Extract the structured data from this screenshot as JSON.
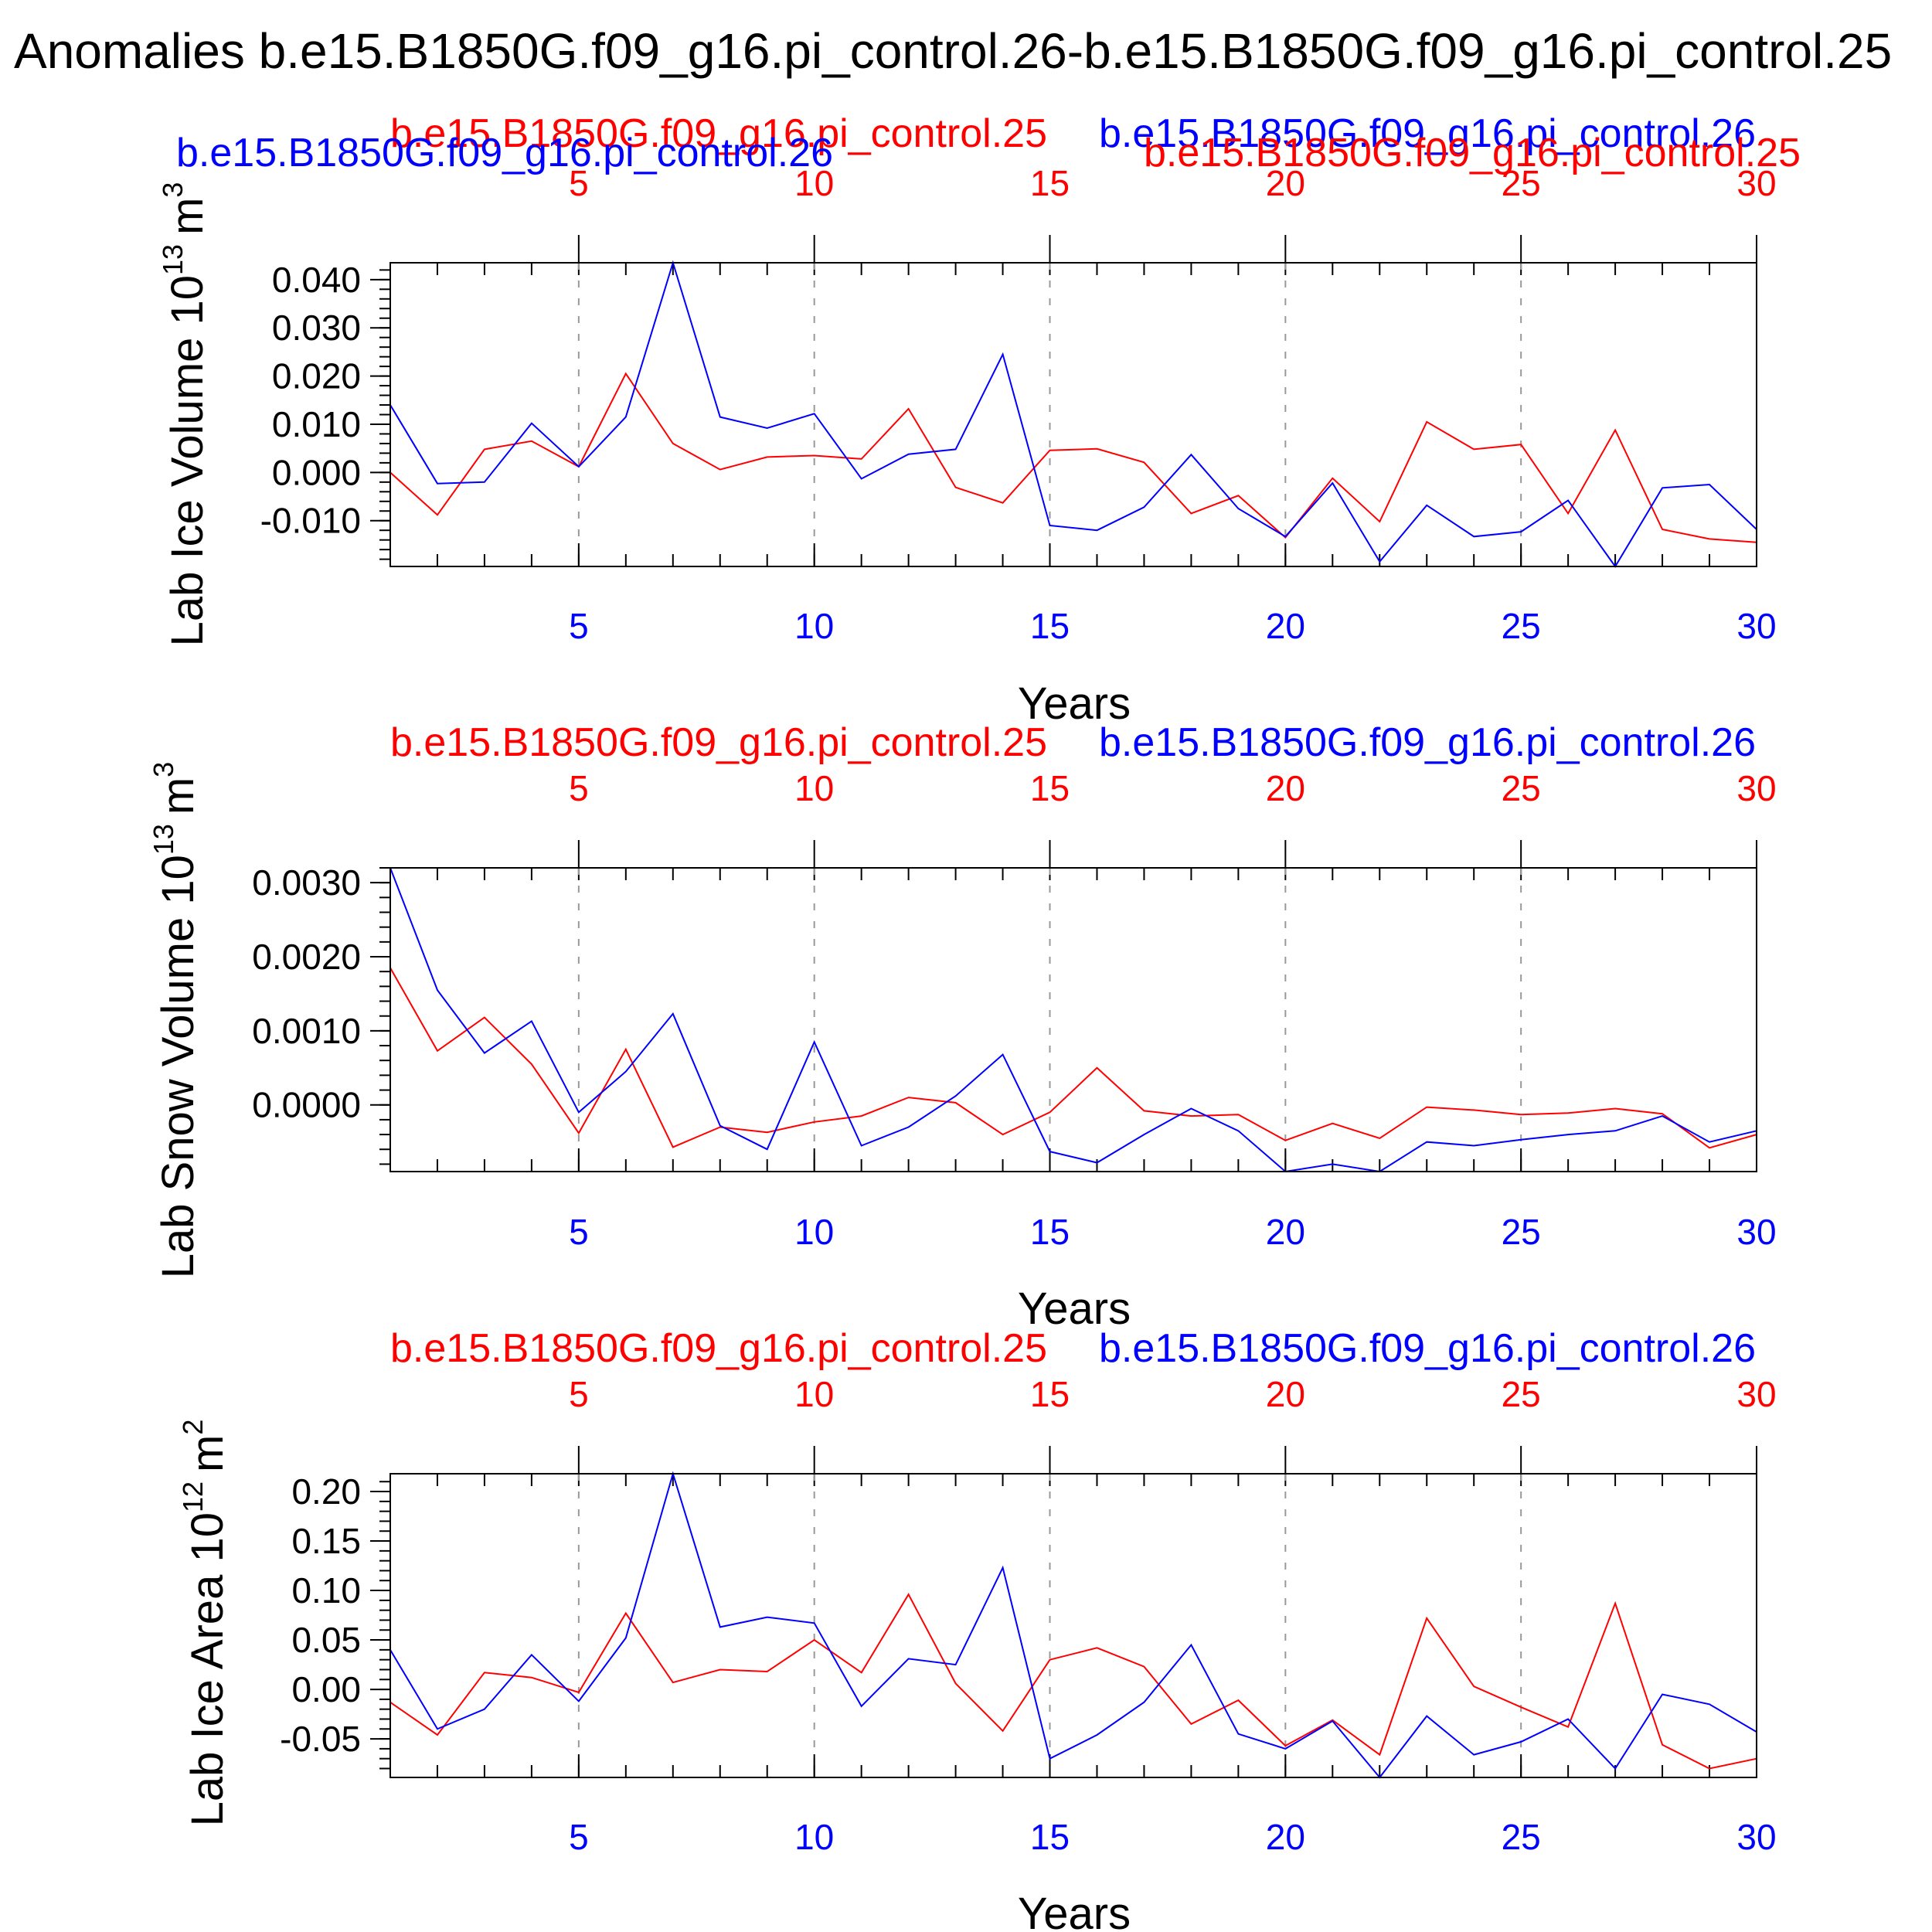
{
  "figure": {
    "title": "Anomalies b.e15.B1850G.f09_g16.pi_control.26-b.e15.B1850G.f09_g16.pi_control.25",
    "series_colors": {
      "run_26": "#0000ff",
      "run_25": "#ff0000"
    },
    "axis_color": "#000000",
    "grid_color": "#999999"
  },
  "chart_data": [
    {
      "type": "line",
      "title": "",
      "xlabel": "Years",
      "ylabel": "Lab Ice Volume 10",
      "ylabel_exponent": "13",
      "ylabel_unit": "m",
      "ylabel_unit_exponent": "3",
      "top_axis_name": "b.e15.B1850G.f09_g16.pi_control.25",
      "top_axis_name_alt": "b.e15.B1850G.f09_g16.pi_control.26",
      "top_axis_name_dup_26": "b.e15.B1850G.f09_g16.pi_control.26",
      "top_axis_name_dup_25": "b.e15.B1850G.f09_g16.pi_control.25",
      "right_axis_name": "b.e15.B1850G.f09_g16.pi_control.26",
      "xlim": [
        1,
        30
      ],
      "ylim": [
        -0.0195,
        0.0435
      ],
      "yticks": [
        -0.01,
        0.0,
        0.01,
        0.02,
        0.03,
        0.04
      ],
      "yticklabels": [
        "-0.010",
        "0.000",
        "0.010",
        "0.020",
        "0.030",
        "0.040"
      ],
      "xticks": [
        5,
        10,
        15,
        20,
        25,
        30
      ],
      "xticklabels": [
        "5",
        "10",
        "15",
        "20",
        "25",
        "30"
      ],
      "grid": "vertical dashed at major x ticks",
      "x": [
        1,
        2,
        3,
        4,
        5,
        6,
        7,
        8,
        9,
        10,
        11,
        12,
        13,
        14,
        15,
        16,
        17,
        18,
        19,
        20,
        21,
        22,
        23,
        24,
        25,
        26,
        27,
        28,
        29,
        30
      ],
      "series": [
        {
          "name": "b.e15.B1850G.f09_g16.pi_control.26",
          "color": "#0000ff",
          "values": [
            0.014,
            -0.0023,
            -0.002,
            0.0102,
            0.0012,
            0.0115,
            0.0435,
            0.0115,
            0.0092,
            0.0122,
            -0.0013,
            0.0038,
            0.0048,
            0.0245,
            -0.011,
            -0.012,
            -0.0072,
            0.0037,
            -0.0075,
            -0.0133,
            -0.0022,
            -0.0185,
            -0.0068,
            -0.0133,
            -0.0123,
            -0.0058,
            -0.0195,
            -0.0032,
            -0.0025,
            -0.0118
          ]
        },
        {
          "name": "b.e15.B1850G.f09_g16.pi_control.25",
          "color": "#ff0000",
          "values": [
            0.0,
            -0.0088,
            0.0048,
            0.0065,
            0.0012,
            0.0205,
            0.006,
            0.0006,
            0.0032,
            0.0035,
            0.0028,
            0.0132,
            -0.0031,
            -0.0063,
            0.0046,
            0.0049,
            0.0021,
            -0.0085,
            -0.0048,
            -0.0135,
            -0.0012,
            -0.0102,
            0.0105,
            0.0048,
            0.0058,
            -0.0085,
            0.0088,
            -0.0118,
            -0.0138,
            -0.0145
          ]
        }
      ]
    },
    {
      "type": "line",
      "title": "",
      "xlabel": "Years",
      "ylabel": "Lab Snow Volume 10",
      "ylabel_exponent": "13",
      "ylabel_unit": "m",
      "ylabel_unit_exponent": "3",
      "top_axis_name": "b.e15.B1850G.f09_g16.pi_control.25",
      "right_axis_name": "b.e15.B1850G.f09_g16.pi_control.26",
      "xlim": [
        1,
        30
      ],
      "ylim": [
        -0.0009,
        0.0032
      ],
      "yticks": [
        0.0,
        0.001,
        0.002,
        0.003
      ],
      "yticklabels": [
        "0.0000",
        "0.0010",
        "0.0020",
        "0.0030"
      ],
      "xticks": [
        5,
        10,
        15,
        20,
        25,
        30
      ],
      "xticklabels": [
        "5",
        "10",
        "15",
        "20",
        "25",
        "30"
      ],
      "grid": "vertical dashed at major x ticks",
      "x": [
        1,
        2,
        3,
        4,
        5,
        6,
        7,
        8,
        9,
        10,
        11,
        12,
        13,
        14,
        15,
        16,
        17,
        18,
        19,
        20,
        21,
        22,
        23,
        24,
        25,
        26,
        27,
        28,
        29,
        30
      ],
      "series": [
        {
          "name": "b.e15.B1850G.f09_g16.pi_control.26",
          "color": "#0000ff",
          "values": [
            0.0032,
            0.00155,
            0.0007,
            0.00113,
            -0.0001,
            0.00045,
            0.00123,
            -0.00028,
            -0.0006,
            0.00085,
            -0.00055,
            -0.0003,
            0.00012,
            0.00068,
            -0.00063,
            -0.00078,
            -0.0004,
            -5e-05,
            -0.00035,
            -0.0009,
            -0.0008,
            -0.0009,
            -0.0005,
            -0.00055,
            -0.00047,
            -0.0004,
            -0.00035,
            -0.00015,
            -0.0005,
            -0.00035
          ]
        },
        {
          "name": "b.e15.B1850G.f09_g16.pi_control.25",
          "color": "#ff0000",
          "values": [
            0.00185,
            0.00073,
            0.00118,
            0.00055,
            -0.00038,
            0.00075,
            -0.00057,
            -0.0003,
            -0.00037,
            -0.00023,
            -0.00015,
            0.0001,
            3e-05,
            -0.0004,
            -0.0001,
            0.0005,
            -8e-05,
            -0.00015,
            -0.00013,
            -0.00048,
            -0.00025,
            -0.00045,
            -3e-05,
            -7e-05,
            -0.00013,
            -0.00011,
            -5e-05,
            -0.00012,
            -0.00058,
            -0.0004
          ]
        }
      ]
    },
    {
      "type": "line",
      "title": "",
      "xlabel": "Years",
      "ylabel": "Lab Ice Area 10",
      "ylabel_exponent": "12",
      "ylabel_unit": "m",
      "ylabel_unit_exponent": "2",
      "top_axis_name": "b.e15.B1850G.f09_g16.pi_control.25",
      "right_axis_name": "b.e15.B1850G.f09_g16.pi_control.26",
      "xlim": [
        1,
        30
      ],
      "ylim": [
        -0.089,
        0.218
      ],
      "yticks": [
        -0.05,
        0.0,
        0.05,
        0.1,
        0.15,
        0.2
      ],
      "yticklabels": [
        "-0.05",
        "0.00",
        "0.05",
        "0.10",
        "0.15",
        "0.20"
      ],
      "xticks": [
        5,
        10,
        15,
        20,
        25,
        30
      ],
      "xticklabels": [
        "5",
        "10",
        "15",
        "20",
        "25",
        "30"
      ],
      "grid": "vertical dashed at major x ticks",
      "x": [
        1,
        2,
        3,
        4,
        5,
        6,
        7,
        8,
        9,
        10,
        11,
        12,
        13,
        14,
        15,
        16,
        17,
        18,
        19,
        20,
        21,
        22,
        23,
        24,
        25,
        26,
        27,
        28,
        29,
        30
      ],
      "series": [
        {
          "name": "b.e15.B1850G.f09_g16.pi_control.26",
          "color": "#0000ff",
          "values": [
            0.04,
            -0.04,
            -0.02,
            0.035,
            -0.012,
            0.052,
            0.218,
            0.063,
            0.073,
            0.067,
            -0.017,
            0.031,
            0.025,
            0.123,
            -0.07,
            -0.046,
            -0.013,
            0.045,
            -0.045,
            -0.06,
            -0.032,
            -0.089,
            -0.027,
            -0.066,
            -0.053,
            -0.03,
            -0.08,
            -0.005,
            -0.015,
            -0.043
          ]
        },
        {
          "name": "b.e15.B1850G.f09_g16.pi_control.25",
          "color": "#ff0000",
          "values": [
            -0.013,
            -0.046,
            0.017,
            0.012,
            -0.003,
            0.077,
            0.007,
            0.02,
            0.018,
            0.05,
            0.017,
            0.096,
            0.006,
            -0.042,
            0.03,
            0.042,
            0.023,
            -0.035,
            -0.011,
            -0.057,
            -0.031,
            -0.066,
            0.072,
            0.003,
            -0.018,
            -0.038,
            0.087,
            -0.056,
            -0.08,
            -0.07
          ]
        }
      ]
    }
  ]
}
